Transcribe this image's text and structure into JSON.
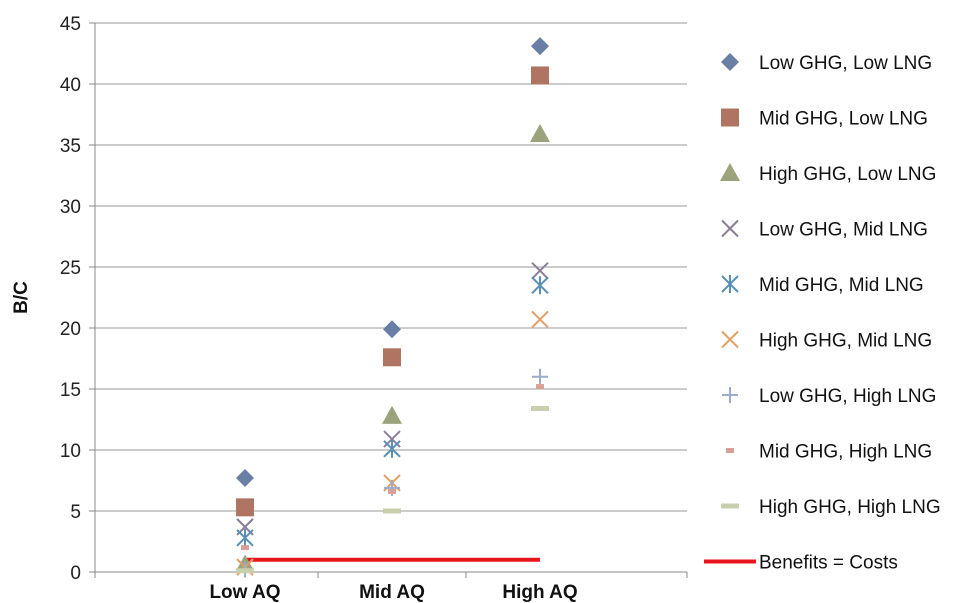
{
  "chart_data": {
    "type": "scatter",
    "title": "",
    "xlabel": "",
    "ylabel": "B/C",
    "categories": [
      "Low AQ",
      "Mid AQ",
      "High AQ"
    ],
    "ylim": [
      0,
      45
    ],
    "yticks": [
      0,
      5,
      10,
      15,
      20,
      25,
      30,
      35,
      40,
      45
    ],
    "grid": "horizontal",
    "legend": "right",
    "series": [
      {
        "name": "Low GHG, Low LNG",
        "marker": "diamond",
        "color": "#6A7FA6",
        "values": [
          7.7,
          19.9,
          43.1
        ]
      },
      {
        "name": "Mid GHG, Low LNG",
        "marker": "square",
        "color": "#B07462",
        "values": [
          5.3,
          17.6,
          40.7
        ]
      },
      {
        "name": "High GHG, Low LNG",
        "marker": "triangle",
        "color": "#9AA37C",
        "values": [
          0.6,
          12.8,
          35.9
        ]
      },
      {
        "name": "Low GHG, Mid LNG",
        "marker": "x",
        "color": "#8A7F97",
        "values": [
          3.7,
          10.9,
          24.7
        ]
      },
      {
        "name": "Mid GHG, Mid LNG",
        "marker": "star",
        "color": "#5A8FB5",
        "values": [
          2.8,
          10.1,
          23.5
        ]
      },
      {
        "name": "High GHG, Mid LNG",
        "marker": "x",
        "color": "#E3A065",
        "values": [
          0.4,
          7.3,
          20.7
        ]
      },
      {
        "name": "Low GHG, High LNG",
        "marker": "plus",
        "color": "#9AACC9",
        "values": [
          0.2,
          6.9,
          16.0
        ]
      },
      {
        "name": "Mid GHG, High LNG",
        "marker": "dash",
        "color": "#D9A09A",
        "values": [
          2.0,
          6.6,
          15.2
        ]
      },
      {
        "name": "High GHG, High LNG",
        "marker": "dash-long",
        "color": "#C8CFAE",
        "values": [
          0.1,
          5.0,
          13.4
        ]
      }
    ],
    "reference_line": {
      "name": "Benefits = Costs",
      "color": "#E8151B",
      "value": 1
    }
  }
}
